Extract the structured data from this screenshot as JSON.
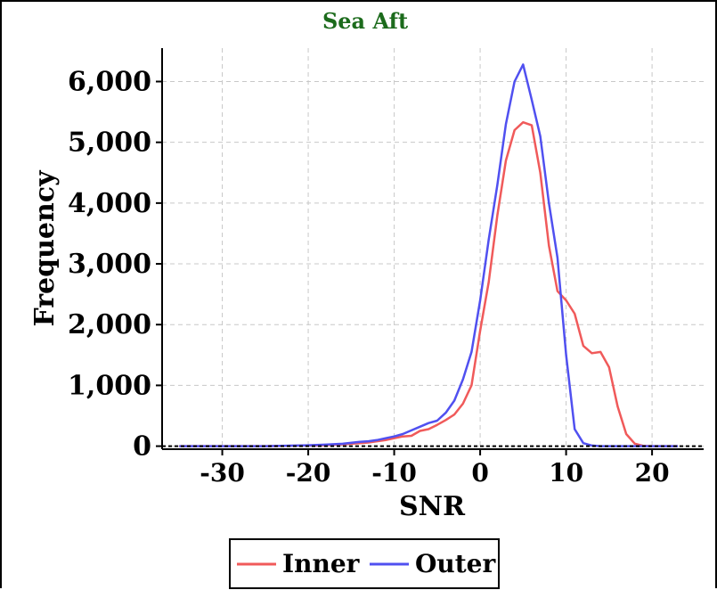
{
  "chart_data": {
    "type": "line",
    "title": "Sea Aft",
    "xlabel": "SNR",
    "ylabel": "Frequency",
    "xlim": [
      -37,
      26
    ],
    "ylim": [
      -50,
      6550
    ],
    "xticks": [
      -30,
      -20,
      -10,
      0,
      10,
      20
    ],
    "xtick_labels": [
      "-30",
      "-20",
      "-10",
      "0",
      "10",
      "20"
    ],
    "yticks": [
      0,
      1000,
      2000,
      3000,
      4000,
      5000,
      6000
    ],
    "ytick_labels": [
      "0",
      "1,000",
      "2,000",
      "3,000",
      "4,000",
      "5,000",
      "6,000"
    ],
    "grid": true,
    "legend_position": "bottom-center",
    "series": [
      {
        "name": "Inner",
        "color": "#f05a5a",
        "x": [
          -35,
          -30,
          -25,
          -20,
          -18,
          -16,
          -14,
          -13,
          -12,
          -11,
          -10,
          -9,
          -8,
          -7,
          -6,
          -5,
          -4,
          -3,
          -2,
          -1,
          0,
          1,
          2,
          3,
          4,
          5,
          6,
          7,
          8,
          9,
          10,
          11,
          12,
          13,
          14,
          15,
          16,
          17,
          18,
          19,
          20,
          22,
          23
        ],
        "y": [
          0,
          0,
          0,
          10,
          15,
          30,
          50,
          60,
          80,
          100,
          130,
          160,
          170,
          250,
          280,
          350,
          430,
          520,
          700,
          1000,
          1900,
          2700,
          3800,
          4700,
          5200,
          5330,
          5280,
          4500,
          3300,
          2550,
          2400,
          2180,
          1650,
          1530,
          1550,
          1300,
          650,
          200,
          40,
          5,
          0,
          0,
          0
        ]
      },
      {
        "name": "Outer",
        "color": "#5050f0",
        "x": [
          -35,
          -30,
          -25,
          -20,
          -18,
          -16,
          -14,
          -13,
          -12,
          -11,
          -10,
          -9,
          -8,
          -7,
          -6,
          -5,
          -4,
          -3,
          -2,
          -1,
          0,
          1,
          2,
          3,
          4,
          5,
          6,
          7,
          8,
          9,
          10,
          11,
          12,
          13,
          14,
          15,
          16,
          17,
          18,
          19,
          20,
          22,
          23
        ],
        "y": [
          0,
          0,
          0,
          15,
          25,
          40,
          70,
          80,
          100,
          130,
          160,
          200,
          260,
          320,
          380,
          420,
          550,
          750,
          1100,
          1550,
          2400,
          3400,
          4300,
          5300,
          6000,
          6280,
          5700,
          5100,
          4000,
          3100,
          1500,
          280,
          50,
          10,
          0,
          0,
          0,
          0,
          0,
          0,
          0,
          0,
          0
        ]
      }
    ]
  }
}
